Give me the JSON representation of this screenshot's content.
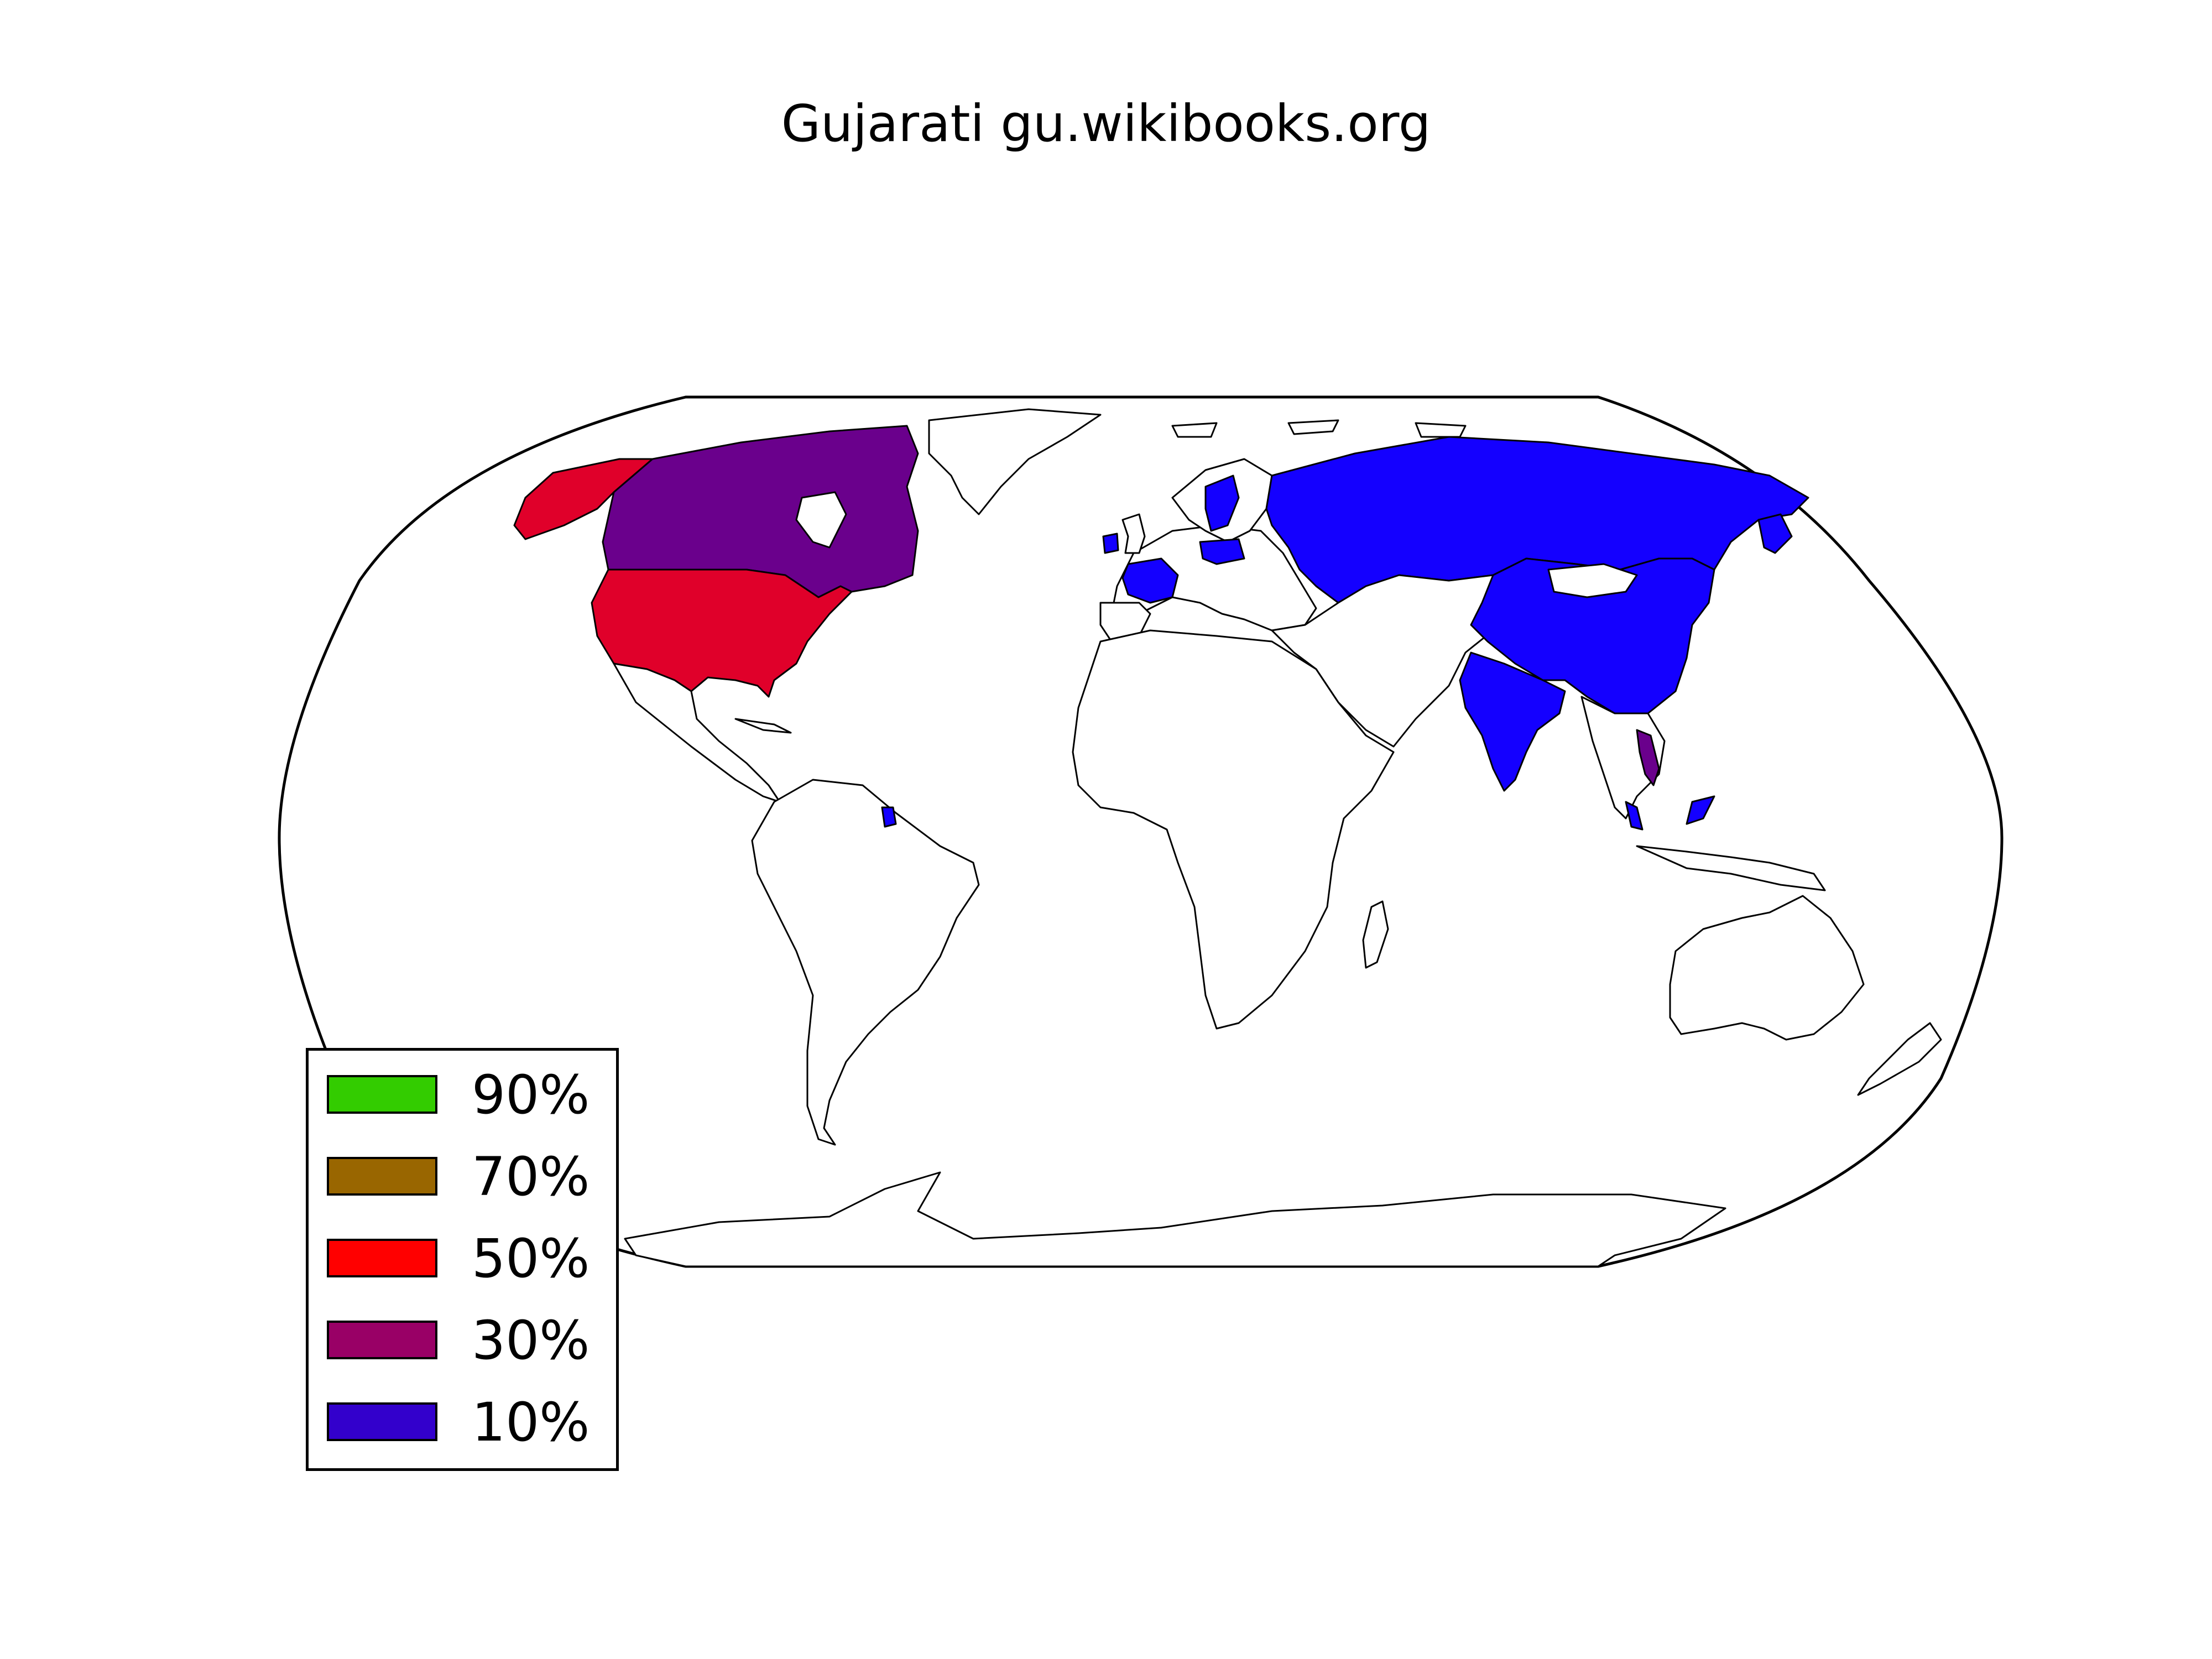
{
  "map": {
    "title": "Gujarati gu.wikibooks.org",
    "projection": "robinson",
    "colors": {
      "land": "#ffffff",
      "border": "#000000",
      "ocean": "#ffffff"
    },
    "highlighted_countries": [
      {
        "name": "United States",
        "bucket": "50%",
        "color": "#e0002a"
      },
      {
        "name": "Canada",
        "bucket": "30%",
        "color": "#6a008c"
      },
      {
        "name": "Russia",
        "bucket": "10%",
        "color": "#1400ff"
      },
      {
        "name": "China",
        "bucket": "10%",
        "color": "#1400ff"
      },
      {
        "name": "India",
        "bucket": "10%",
        "color": "#1400ff"
      },
      {
        "name": "France",
        "bucket": "10%",
        "color": "#1400ff"
      },
      {
        "name": "Poland",
        "bucket": "10%",
        "color": "#1400ff"
      },
      {
        "name": "Sweden",
        "bucket": "10%",
        "color": "#1400ff"
      },
      {
        "name": "Ireland",
        "bucket": "10%",
        "color": "#1400ff"
      },
      {
        "name": "Japan",
        "bucket": "10%",
        "color": "#1400ff"
      },
      {
        "name": "Malaysia",
        "bucket": "10%",
        "color": "#1400ff"
      },
      {
        "name": "Suriname",
        "bucket": "10%",
        "color": "#1400ff"
      },
      {
        "name": "Vietnam",
        "bucket": "30%",
        "color": "#6a008c"
      }
    ]
  },
  "legend": {
    "position": "lower-left",
    "items": [
      {
        "label": "90%",
        "color": "#33cc00"
      },
      {
        "label": "70%",
        "color": "#996600"
      },
      {
        "label": "50%",
        "color": "#ff0000"
      },
      {
        "label": "30%",
        "color": "#990066"
      },
      {
        "label": "10%",
        "color": "#3300cc"
      }
    ]
  }
}
